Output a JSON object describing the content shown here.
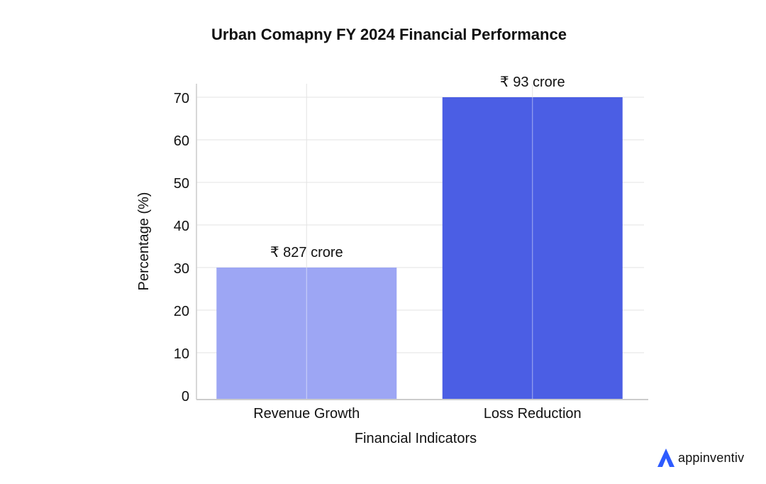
{
  "chart_data": {
    "type": "bar",
    "title": "Urban Comapny FY 2024 Financial Performance",
    "xlabel": "Financial Indicators",
    "ylabel": "Percentage (%)",
    "categories": [
      "Revenue Growth",
      "Loss Reduction"
    ],
    "values": [
      30,
      70
    ],
    "data_labels": [
      "₹ 827 crore",
      "₹ 93 crore"
    ],
    "bar_colors": [
      "#9DA6F4",
      "#4B5EE4"
    ],
    "ylim": [
      0,
      70
    ],
    "yticks": [
      0,
      10,
      20,
      30,
      40,
      50,
      60,
      70
    ],
    "grid": true
  },
  "brand": {
    "name": "appinventiv",
    "accent": "#2E5BFF"
  }
}
